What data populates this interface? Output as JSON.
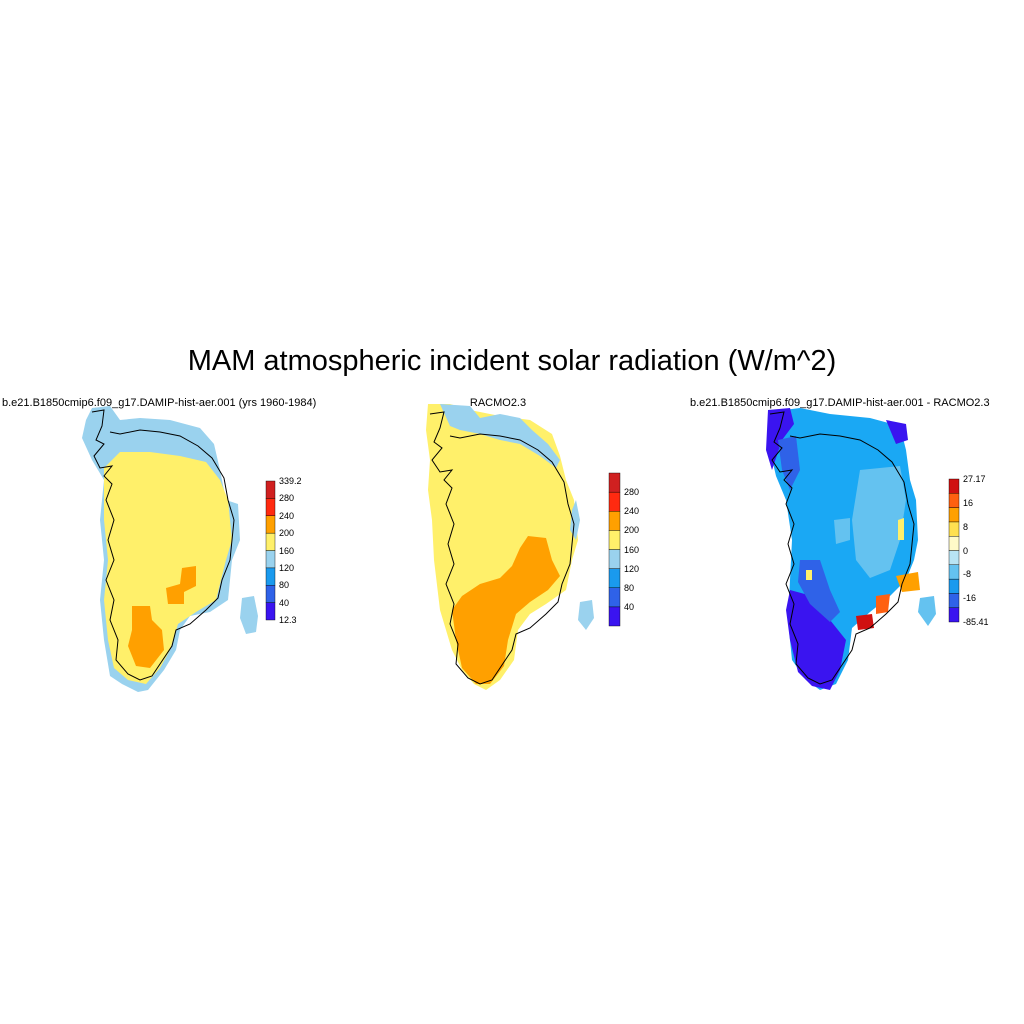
{
  "figure": {
    "title": "MAM atmospheric incident solar radiation (W/m^2)"
  },
  "panels": [
    {
      "title": "b.e21.B1850cmip6.f09_g17.DAMIP-hist-aer.001 (yrs 1960-1984)",
      "colorbar": {
        "colors": [
          "#3a14f0",
          "#2f62e8",
          "#1a9aee",
          "#9ad2ee",
          "#fff06a",
          "#ffa000",
          "#ff2a10",
          "#d02020"
        ],
        "labels": [
          "12.3",
          "40",
          "80",
          "120",
          "160",
          "200",
          "240",
          "280",
          "339.2"
        ]
      }
    },
    {
      "title": "RACMO2.3",
      "colorbar": {
        "colors": [
          "#3a14f0",
          "#2f62e8",
          "#1a9aee",
          "#9ad2ee",
          "#fff06a",
          "#ffa000",
          "#ff2a10",
          "#d02020"
        ],
        "labels": [
          "",
          "40",
          "80",
          "120",
          "160",
          "200",
          "240",
          "280",
          ""
        ]
      }
    },
    {
      "title": "b.e21.B1850cmip6.f09_g17.DAMIP-hist-aer.001 - RACMO2.3",
      "colorbar": {
        "colors": [
          "#3a14f0",
          "#2f62e8",
          "#1a9aee",
          "#64c2f0",
          "#b8e4f4",
          "#fffac8",
          "#ffe050",
          "#ffa000",
          "#ff6010",
          "#d01010"
        ],
        "labels": [
          "-85.41",
          "-16",
          "-8",
          "0",
          "8",
          "16",
          "27.17"
        ]
      }
    }
  ]
}
